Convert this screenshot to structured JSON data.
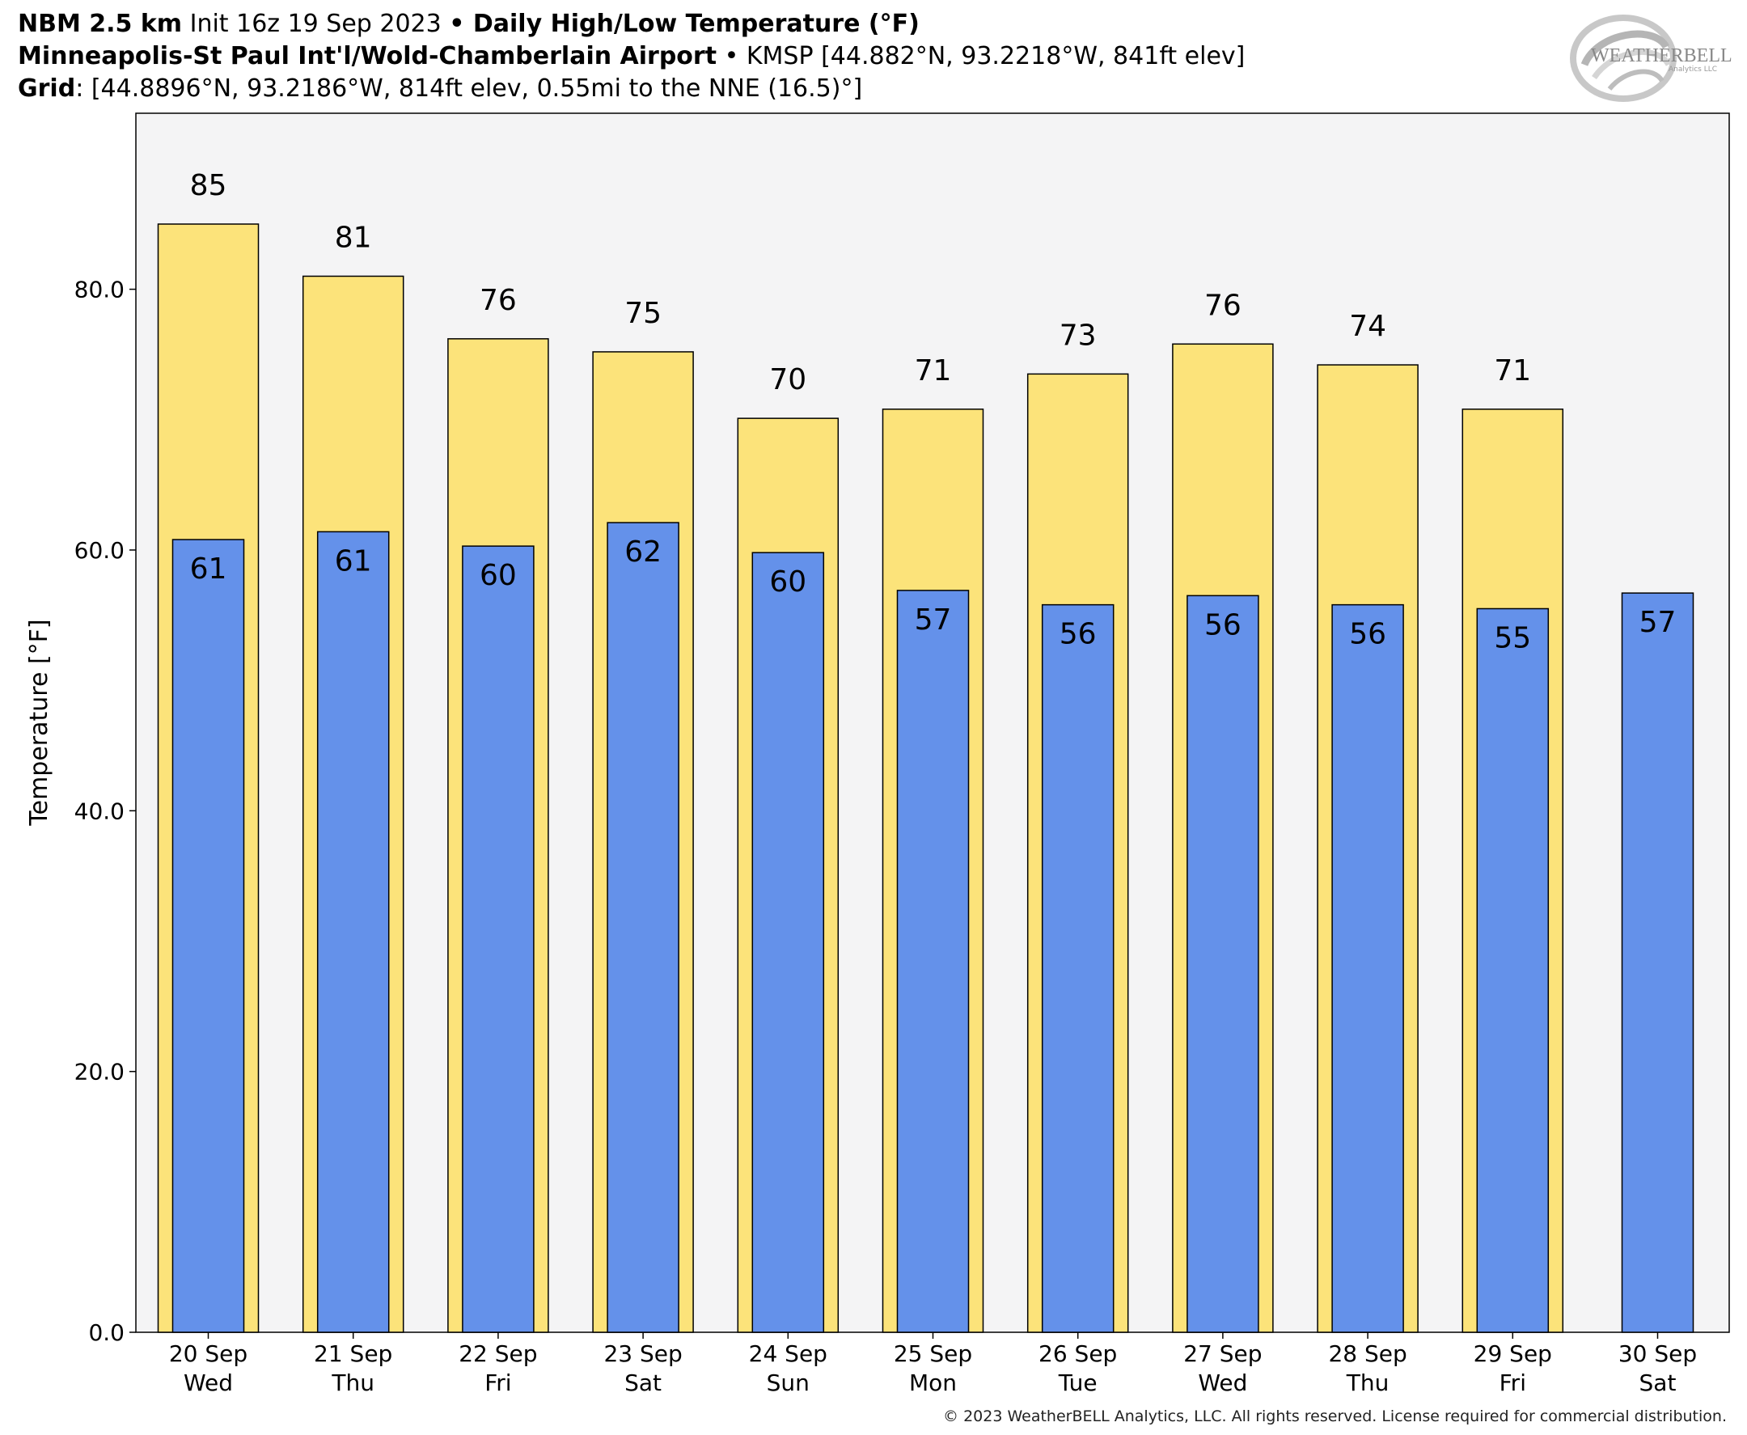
{
  "header": {
    "line1": {
      "model": "NBM 2.5 km",
      "init": " Init 16z 19 Sep 2023 ",
      "sep": "•",
      "product": " Daily High/Low Temperature (°F)"
    },
    "line2": {
      "station": "Minneapolis-St Paul Int'l/Wold-Chamberlain Airport",
      "sep": " • ",
      "meta": "KMSP [44.882°N, 93.2218°W, 841ft elev]"
    },
    "line3": {
      "label": "Grid",
      "meta": ": [44.8896°N, 93.2186°W, 814ft elev, 0.55mi to the NNE (16.5)°]"
    }
  },
  "logo": {
    "text": "WEATHERBELL",
    "subtext": "Analytics LLC"
  },
  "copyright": "© 2023 WeatherBELL Analytics, LLC. All rights reserved. License required for commercial distribution.",
  "colors": {
    "high": "#fce37a",
    "low": "#6491ea",
    "plot_bg": "#f4f4f5",
    "outline": "#000000"
  },
  "chart_data": {
    "type": "bar",
    "title": "Daily High/Low Temperature (°F)",
    "ylabel": "Temperature [°F]",
    "xlabel": "",
    "ylim": [
      0,
      93.5
    ],
    "yticks": [
      "0.0",
      "20.0",
      "40.0",
      "60.0",
      "80.0"
    ],
    "categories": [
      [
        "20 Sep",
        "Wed"
      ],
      [
        "21 Sep",
        "Thu"
      ],
      [
        "22 Sep",
        "Fri"
      ],
      [
        "23 Sep",
        "Sat"
      ],
      [
        "24 Sep",
        "Sun"
      ],
      [
        "25 Sep",
        "Mon"
      ],
      [
        "26 Sep",
        "Tue"
      ],
      [
        "27 Sep",
        "Wed"
      ],
      [
        "28 Sep",
        "Thu"
      ],
      [
        "29 Sep",
        "Fri"
      ],
      [
        "30 Sep",
        "Sat"
      ]
    ],
    "series": [
      {
        "name": "High",
        "values": [
          85,
          81,
          76.2,
          75.2,
          70.1,
          70.8,
          73.5,
          75.8,
          74.2,
          70.8,
          null
        ],
        "labels": [
          "85",
          "81",
          "76",
          "75",
          "70",
          "71",
          "73",
          "76",
          "74",
          "71",
          ""
        ]
      },
      {
        "name": "Low",
        "values": [
          60.8,
          61.4,
          60.3,
          62.1,
          59.8,
          56.9,
          55.8,
          56.5,
          55.8,
          55.5,
          56.7
        ],
        "labels": [
          "61",
          "61",
          "60",
          "62",
          "60",
          "57",
          "56",
          "56",
          "56",
          "55",
          "57"
        ]
      }
    ],
    "grid": false,
    "legend": "none"
  }
}
